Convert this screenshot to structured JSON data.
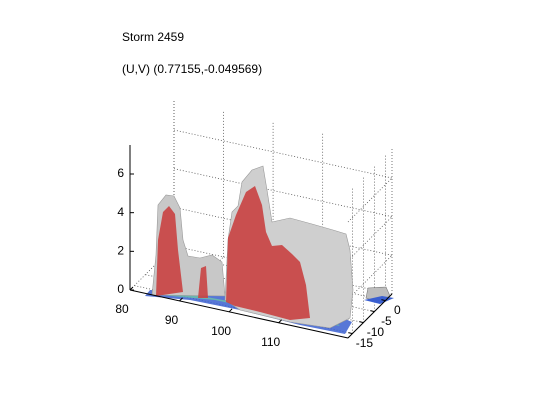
{
  "chart_data": {
    "type": "surface3d",
    "title": "Storm 2459",
    "subtitle": "(U,V) (0.77155,-0.049569)",
    "xlim": [
      80,
      124
    ],
    "xticks": [
      80,
      90,
      100,
      110
    ],
    "ylim": [
      -17,
      3
    ],
    "yticks": [
      0,
      -5,
      -10,
      -15
    ],
    "zlim": [
      0,
      7.5
    ],
    "zticks": [
      0,
      2,
      4,
      6
    ],
    "grid": true
  }
}
